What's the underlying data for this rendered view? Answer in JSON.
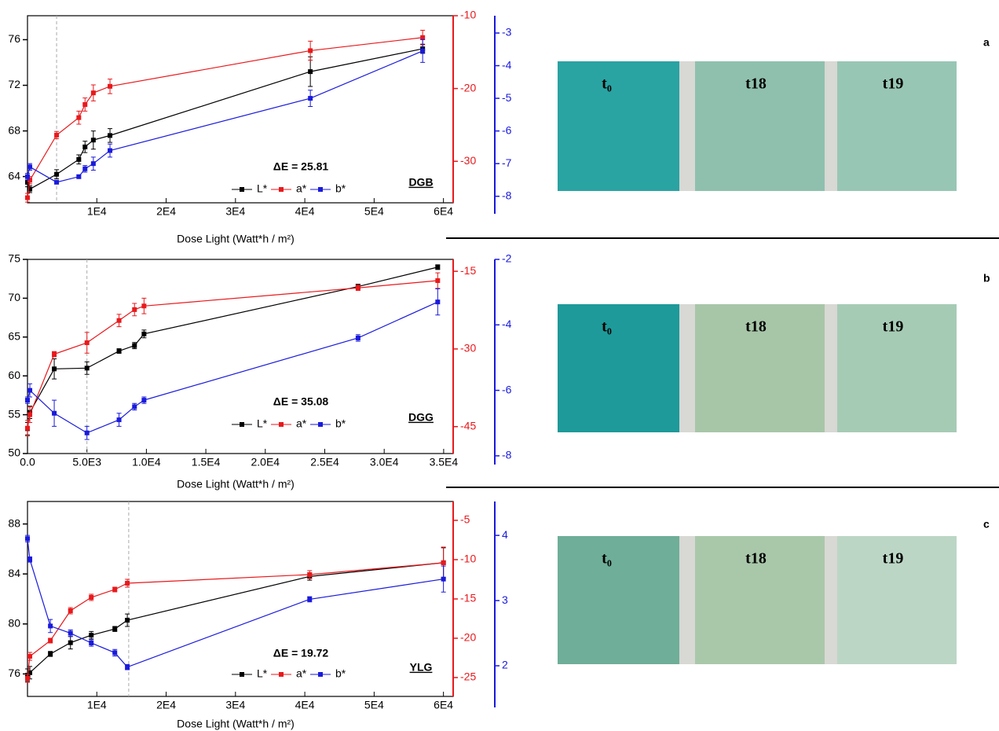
{
  "chart_data": [
    {
      "type": "line",
      "panel": "a",
      "xlabel": "Dose Light (Watt*h / m²)",
      "xlim": [
        0,
        61400
      ],
      "xticks": [
        {
          "value": 10000,
          "label": "1E4"
        },
        {
          "value": 20000,
          "label": "2E4"
        },
        {
          "value": 30000,
          "label": "3E4"
        },
        {
          "value": 40000,
          "label": "4E4"
        },
        {
          "value": 50000,
          "label": "5E4"
        },
        {
          "value": 60000,
          "label": "6E4"
        }
      ],
      "ylim": [
        61.7,
        78.1
      ],
      "yticks": [
        64,
        68,
        72,
        76
      ],
      "y2lim": [
        -35.7,
        -10
      ],
      "y2ticks": [
        -10,
        -20,
        -30
      ],
      "y3lim": [
        -8.2,
        -2.47
      ],
      "y3ticks": [
        -3,
        -4,
        -5,
        -6,
        -7,
        -8
      ],
      "x": [
        0,
        340,
        4200,
        7400,
        8300,
        9500,
        11900,
        40800,
        57000
      ],
      "series": [
        {
          "name": "L*",
          "color": "#000000",
          "axis": "y",
          "values": [
            63.5,
            62.9,
            64.2,
            65.5,
            66.6,
            67.2,
            67.6,
            73.2,
            75.2
          ],
          "errors": [
            0.4,
            0.3,
            0.4,
            0.4,
            0.5,
            0.8,
            0.6,
            1.3,
            0.4
          ]
        },
        {
          "name": "a*",
          "color": "#e8191c",
          "axis": "y2",
          "values": [
            -35,
            -32.6,
            -26.4,
            -24.0,
            -22.2,
            -20.6,
            -19.7,
            -14.8,
            -13.0
          ],
          "errors": [
            0.6,
            0.5,
            0.5,
            0.9,
            0.9,
            1.1,
            1.0,
            1.3,
            1.0
          ]
        },
        {
          "name": "b*",
          "color": "#1a1adc",
          "axis": "y3",
          "values": [
            -7.4,
            -7.1,
            -7.57,
            -7.4,
            -7.16,
            -7.0,
            -6.6,
            -5.0,
            -3.55
          ],
          "errors": [
            0.1,
            0.1,
            0.05,
            0.05,
            0.1,
            0.2,
            0.2,
            0.25,
            0.35
          ]
        }
      ],
      "vline": 4200,
      "annotation": "ΔE = 25.81",
      "sample": "DGB",
      "photos": [
        "t₀",
        "t18",
        "t19"
      ]
    },
    {
      "type": "line",
      "panel": "b",
      "xlabel": "Dose Light (Watt*h / m²)",
      "xlim": [
        0,
        35800
      ],
      "xticks": [
        {
          "value": 0,
          "label": "0.0"
        },
        {
          "value": 5000,
          "label": "5.0E3"
        },
        {
          "value": 10000,
          "label": "1.0E4"
        },
        {
          "value": 15000,
          "label": "1.5E4"
        },
        {
          "value": 20000,
          "label": "2.0E4"
        },
        {
          "value": 25000,
          "label": "2.5E4"
        },
        {
          "value": 30000,
          "label": "3.0E4"
        },
        {
          "value": 35000,
          "label": "3.5E4"
        }
      ],
      "ylim": [
        50,
        75
      ],
      "yticks": [
        50,
        55,
        60,
        65,
        70,
        75
      ],
      "y2lim": [
        -50.2,
        -12.7
      ],
      "y2ticks": [
        -15,
        -30,
        -45
      ],
      "y3lim": [
        -7.93,
        -2
      ],
      "y3ticks": [
        -2,
        -4,
        -6,
        -8
      ],
      "x": [
        0,
        200,
        2250,
        5000,
        7700,
        9000,
        9800,
        27800,
        34500
      ],
      "series": [
        {
          "name": "L*",
          "color": "#000000",
          "axis": "y",
          "values": [
            53.2,
            55.3,
            60.9,
            61.0,
            63.2,
            63.9,
            65.4,
            71.5,
            74.0
          ],
          "errors": [
            0.8,
            0.8,
            1.3,
            0.8,
            0.3,
            0.4,
            0.5,
            0.3,
            0.3
          ]
        },
        {
          "name": "a*",
          "color": "#e8191c",
          "axis": "y2",
          "values": [
            -45.3,
            -42.7,
            -31.0,
            -28.8,
            -24.5,
            -22.4,
            -21.7,
            -18.2,
            -16.8
          ],
          "errors": [
            1.5,
            1.5,
            0.5,
            2.0,
            1.2,
            1.2,
            1.5,
            0.5,
            1.5
          ]
        },
        {
          "name": "b*",
          "color": "#1a1adc",
          "axis": "y3",
          "values": [
            -6.3,
            -6.0,
            -6.7,
            -7.3,
            -6.9,
            -6.5,
            -6.3,
            -4.4,
            -3.3
          ],
          "errors": [
            0.1,
            0.2,
            0.4,
            0.2,
            0.2,
            0.1,
            0.1,
            0.1,
            0.4
          ]
        }
      ],
      "vline": 5000,
      "annotation": "ΔE = 35.08",
      "sample": "DGG",
      "photos": [
        "t₀",
        "t18",
        "t19"
      ]
    },
    {
      "type": "line",
      "panel": "c",
      "xlabel": "Dose Light (Watt*h / m²)",
      "xlim": [
        0,
        61400
      ],
      "xticks": [
        {
          "value": 10000,
          "label": "1E4"
        },
        {
          "value": 20000,
          "label": "2E4"
        },
        {
          "value": 30000,
          "label": "3E4"
        },
        {
          "value": 40000,
          "label": "4E4"
        },
        {
          "value": 50000,
          "label": "5E4"
        },
        {
          "value": 60000,
          "label": "6E4"
        }
      ],
      "ylim": [
        74.2,
        89.8
      ],
      "yticks": [
        76,
        80,
        84,
        88
      ],
      "y2lim": [
        -27.4,
        -2.6
      ],
      "y2ticks": [
        -5,
        -10,
        -15,
        -20,
        -25
      ],
      "y3lim": [
        1.53,
        4.52
      ],
      "y3ticks": [
        4,
        3,
        2
      ],
      "x": [
        0,
        340,
        3300,
        6200,
        9200,
        12600,
        14400,
        40700,
        60000
      ],
      "series": [
        {
          "name": "L*",
          "color": "#000000",
          "axis": "y",
          "values": [
            75.9,
            76.1,
            77.6,
            78.5,
            79.1,
            79.6,
            80.3,
            83.8,
            84.9
          ],
          "errors": [
            0.5,
            0.5,
            0.2,
            0.5,
            0.3,
            0.2,
            0.5,
            0.3,
            1.2
          ]
        },
        {
          "name": "a*",
          "color": "#e8191c",
          "axis": "y2",
          "values": [
            -25.1,
            -22.3,
            -20.3,
            -16.5,
            -14.8,
            -13.8,
            -13.0,
            -11.9,
            -10.4
          ],
          "errors": [
            0.5,
            0.5,
            0.3,
            0.4,
            0.4,
            0.3,
            0.5,
            0.5,
            2.0
          ]
        },
        {
          "name": "b*",
          "color": "#1a1adc",
          "axis": "y3",
          "values": [
            3.95,
            3.63,
            2.61,
            2.5,
            2.35,
            2.2,
            1.98,
            3.02,
            3.33
          ],
          "errors": [
            0.05,
            0.04,
            0.1,
            0.05,
            0.05,
            0.05,
            0.04,
            0.04,
            0.2
          ]
        }
      ],
      "vline": 14600,
      "annotation": "ΔE = 19.72",
      "sample": "YLG",
      "photos": [
        "t₀",
        "t18",
        "t19"
      ]
    }
  ]
}
